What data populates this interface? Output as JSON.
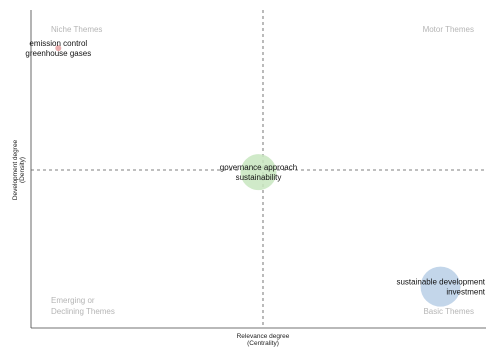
{
  "chart_data": {
    "type": "scatter",
    "title": "",
    "xlabel": [
      "Relevance degree",
      "(Centrality)"
    ],
    "ylabel": [
      "Development degree",
      "(Density)"
    ],
    "quadrants": {
      "top_left": [
        "Niche Themes"
      ],
      "top_right": [
        "Motor Themes"
      ],
      "bottom_left": [
        "Emerging or",
        "Declining Themes"
      ],
      "bottom_right": [
        "Basic Themes"
      ]
    },
    "grid": false,
    "divider_lines": "dashed",
    "points": [
      {
        "label": [
          "emission control",
          "greenhouse gases"
        ],
        "x": 0.06,
        "y": 0.88,
        "size": 3,
        "color": "#e8a0a0"
      },
      {
        "label": [
          "governance approach",
          "sustainability"
        ],
        "x": 0.5,
        "y": 0.49,
        "size": 18,
        "color": "#c8e6c0"
      },
      {
        "label": [
          "sustainable development",
          "investment"
        ],
        "x": 0.9,
        "y": 0.13,
        "size": 20,
        "color": "#b9cfe6"
      }
    ]
  }
}
